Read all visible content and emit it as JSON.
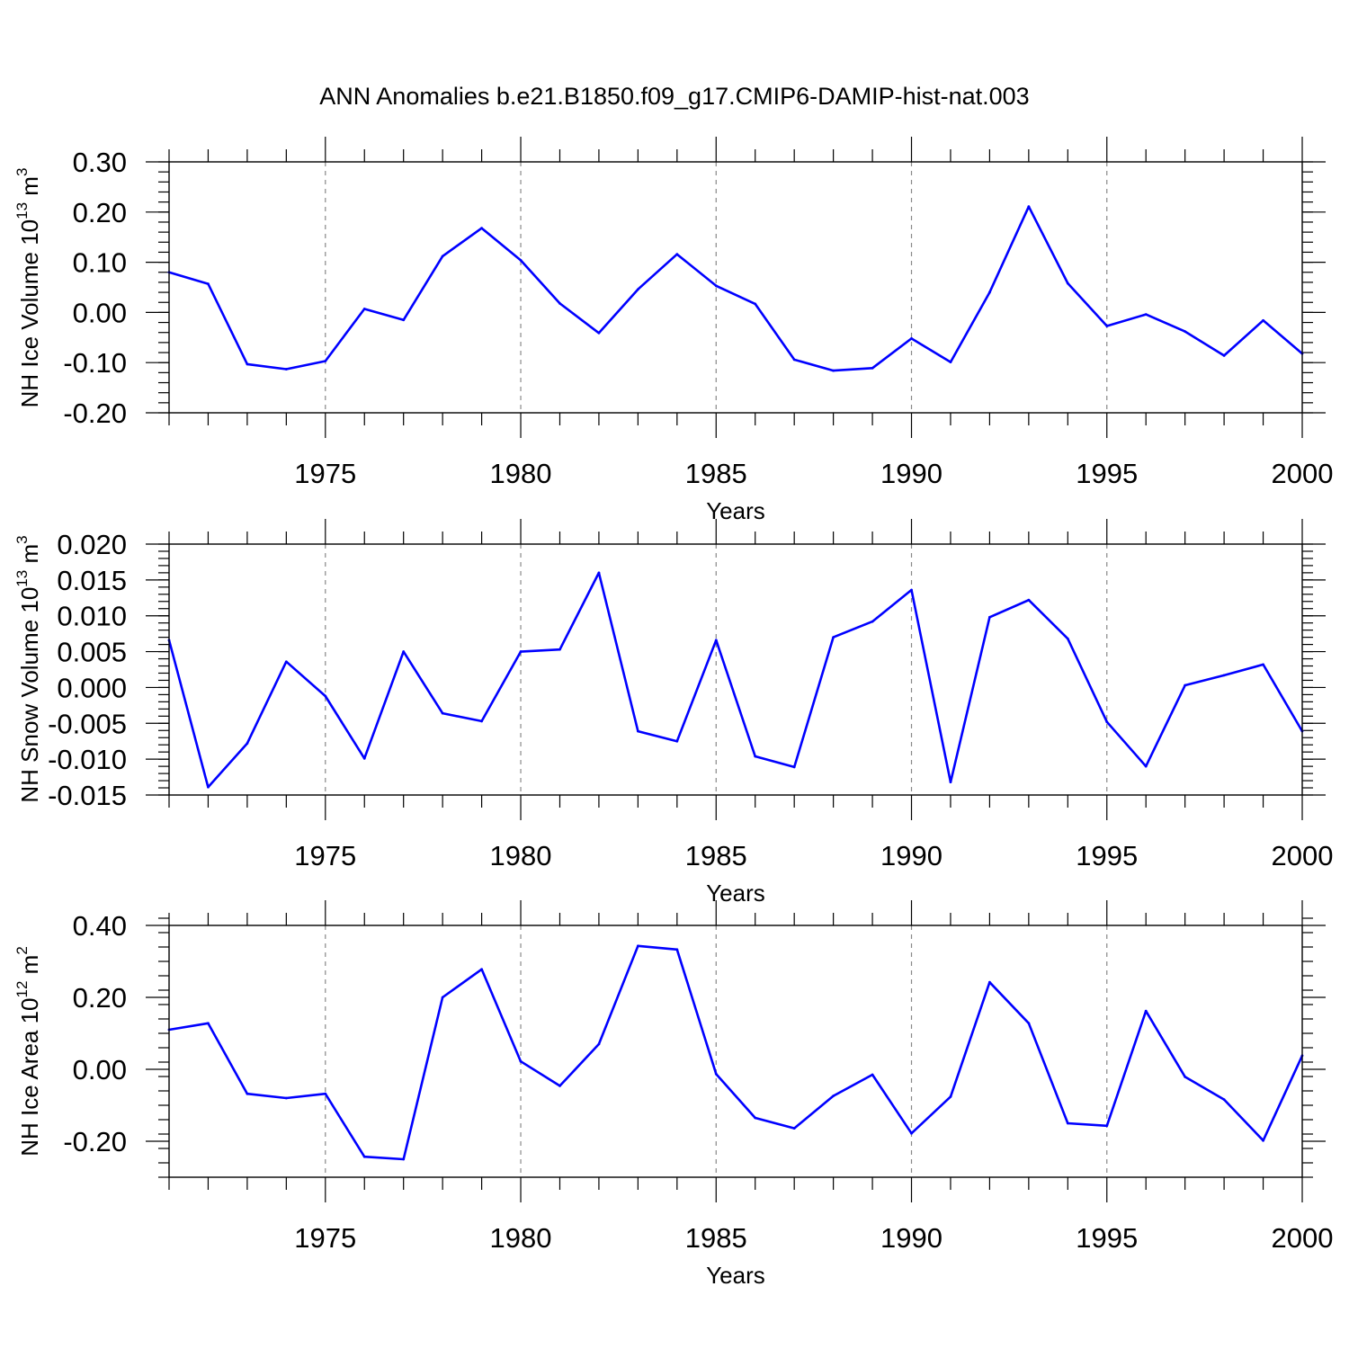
{
  "title": "ANN Anomalies b.e21.B1850.f09_g17.CMIP6-DAMIP-hist-nat.003",
  "line_color": "#0000ff",
  "chart_data": [
    {
      "type": "line",
      "ylabel_main": "NH Ice Volume 10",
      "ylabel_exp": "13",
      "ylabel_unit": " m",
      "ylabel_unit_exp": "3",
      "xlabel": "Years",
      "xlim": [
        1971,
        2000
      ],
      "ylim": [
        -0.2,
        0.3
      ],
      "yticks": [
        -0.2,
        -0.1,
        0.0,
        0.1,
        0.2,
        0.3
      ],
      "ytick_labels": [
        "-0.20",
        "-0.10",
        "0.00",
        "0.10",
        "0.20",
        "0.30"
      ],
      "yminor": 0.02,
      "xticks": [
        1975,
        1980,
        1985,
        1990,
        1995,
        2000
      ],
      "xtick_labels": [
        "1975",
        "1980",
        "1985",
        "1990",
        "1995",
        "2000"
      ],
      "x": [
        1971,
        1972,
        1973,
        1974,
        1975,
        1976,
        1977,
        1978,
        1979,
        1980,
        1981,
        1982,
        1983,
        1984,
        1985,
        1986,
        1987,
        1988,
        1989,
        1990,
        1991,
        1992,
        1993,
        1994,
        1995,
        1996,
        1997,
        1998,
        1999,
        2000
      ],
      "values": [
        0.08,
        0.057,
        -0.103,
        -0.113,
        -0.097,
        0.007,
        -0.015,
        0.112,
        0.168,
        0.104,
        0.018,
        -0.041,
        0.046,
        0.116,
        0.053,
        0.017,
        -0.094,
        -0.116,
        -0.111,
        -0.052,
        -0.099,
        0.04,
        0.211,
        0.058,
        -0.027,
        -0.004,
        -0.038,
        -0.086,
        -0.016,
        -0.082
      ]
    },
    {
      "type": "line",
      "ylabel_main": "NH Snow Volume 10",
      "ylabel_exp": "13",
      "ylabel_unit": " m",
      "ylabel_unit_exp": "3",
      "xlabel": "Years",
      "xlim": [
        1971,
        2000
      ],
      "ylim": [
        -0.015,
        0.02
      ],
      "yticks": [
        -0.015,
        -0.01,
        -0.005,
        0.0,
        0.005,
        0.01,
        0.015,
        0.02
      ],
      "ytick_labels": [
        "-0.015",
        "-0.010",
        "-0.005",
        "0.000",
        "0.005",
        "0.010",
        "0.015",
        "0.020"
      ],
      "yminor": 0.001,
      "xticks": [
        1975,
        1980,
        1985,
        1990,
        1995,
        2000
      ],
      "xtick_labels": [
        "1975",
        "1980",
        "1985",
        "1990",
        "1995",
        "2000"
      ],
      "x": [
        1971,
        1972,
        1973,
        1974,
        1975,
        1976,
        1977,
        1978,
        1979,
        1980,
        1981,
        1982,
        1983,
        1984,
        1985,
        1986,
        1987,
        1988,
        1989,
        1990,
        1991,
        1992,
        1993,
        1994,
        1995,
        1996,
        1997,
        1998,
        1999,
        2000
      ],
      "values": [
        0.0066,
        -0.0139,
        -0.0078,
        0.0036,
        -0.0012,
        -0.0099,
        0.005,
        -0.0036,
        -0.0047,
        0.005,
        0.0053,
        0.016,
        -0.0061,
        -0.0075,
        0.0066,
        -0.0096,
        -0.0111,
        0.007,
        0.0092,
        0.0136,
        -0.0132,
        0.0098,
        0.0122,
        0.0068,
        -0.0048,
        -0.011,
        0.0003,
        0.0017,
        0.0032,
        -0.0061
      ]
    },
    {
      "type": "line",
      "ylabel_main": "NH Ice Area 10",
      "ylabel_exp": "12",
      "ylabel_unit": " m",
      "ylabel_unit_exp": "2",
      "xlabel": "Years",
      "xlim": [
        1971,
        2000
      ],
      "ylim": [
        -0.3,
        0.4
      ],
      "yticks": [
        -0.2,
        0.0,
        0.2,
        0.4
      ],
      "ytick_labels": [
        "-0.20",
        "0.00",
        "0.20",
        "0.40"
      ],
      "yminor": 0.04,
      "xticks": [
        1975,
        1980,
        1985,
        1990,
        1995,
        2000
      ],
      "xtick_labels": [
        "1975",
        "1980",
        "1985",
        "1990",
        "1995",
        "2000"
      ],
      "x": [
        1971,
        1972,
        1973,
        1974,
        1975,
        1976,
        1977,
        1978,
        1979,
        1980,
        1981,
        1982,
        1983,
        1984,
        1985,
        1986,
        1987,
        1988,
        1989,
        1990,
        1991,
        1992,
        1993,
        1994,
        1995,
        1996,
        1997,
        1998,
        1999,
        2000
      ],
      "values": [
        0.11,
        0.128,
        -0.068,
        -0.08,
        -0.068,
        -0.243,
        -0.25,
        0.2,
        0.278,
        0.022,
        -0.046,
        0.07,
        0.343,
        0.333,
        -0.013,
        -0.135,
        -0.164,
        -0.074,
        -0.015,
        -0.178,
        -0.076,
        0.242,
        0.128,
        -0.15,
        -0.157,
        0.162,
        -0.021,
        -0.084,
        -0.198,
        0.038
      ]
    }
  ]
}
